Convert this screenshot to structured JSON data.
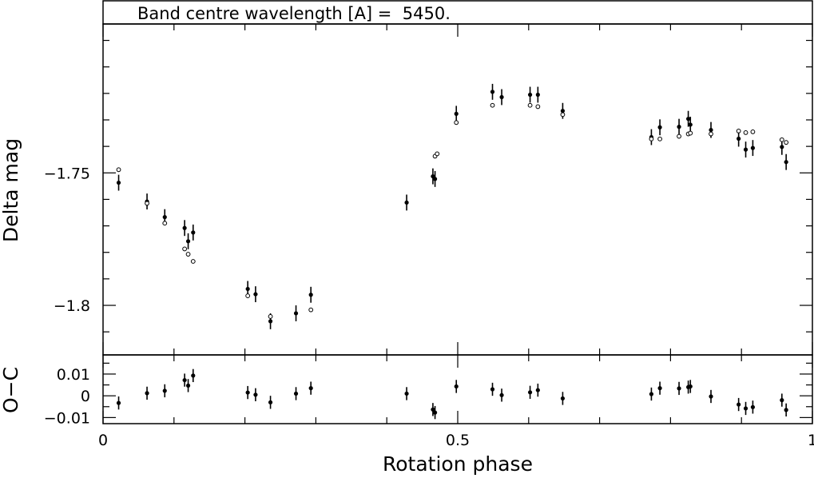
{
  "chart_data": {
    "type": "scatter",
    "title": "Band centre wavelength [A] =  5450.",
    "xlabel": "Rotation phase",
    "xlim": [
      0,
      1
    ],
    "x_ticks": [
      0,
      0.5,
      1
    ],
    "x_tick_labels": [
      "0",
      "0.5",
      "1"
    ],
    "main_panel": {
      "ylabel": "Delta mag",
      "ylim": [
        -1.6938,
        -1.8187
      ],
      "y_ticks": [
        -1.8,
        -1.75
      ],
      "y_tick_labels": [
        "−1.8",
        "−1.75"
      ],
      "series": [
        {
          "marker": "filled",
          "errorbars": true,
          "x": [
            0.022,
            0.062,
            0.087,
            0.115,
            0.12,
            0.127,
            0.204,
            0.215,
            0.236,
            0.272,
            0.293,
            0.428,
            0.465,
            0.468,
            0.498,
            0.549,
            0.562,
            0.602,
            0.613,
            0.648,
            0.773,
            0.785,
            0.812,
            0.825,
            0.828,
            0.857,
            0.896,
            0.906,
            0.916,
            0.957,
            0.963
          ],
          "y": [
            -1.7537,
            -1.7608,
            -1.7667,
            -1.7708,
            -1.7758,
            -1.7725,
            -1.7938,
            -1.7958,
            -1.806,
            -1.803,
            -1.796,
            -1.7612,
            -1.7513,
            -1.7523,
            -1.7277,
            -1.7194,
            -1.7214,
            -1.7205,
            -1.7205,
            -1.7266,
            -1.7365,
            -1.7328,
            -1.7326,
            -1.7296,
            -1.7318,
            -1.7338,
            -1.7371,
            -1.7412,
            -1.7406,
            -1.7402,
            -1.7459
          ],
          "yerr": [
            0.003,
            0.003,
            0.003,
            0.003,
            0.003,
            0.003,
            0.003,
            0.003,
            0.003,
            0.003,
            0.003,
            0.003,
            0.003,
            0.003,
            0.003,
            0.003,
            0.003,
            0.003,
            0.003,
            0.003,
            0.003,
            0.003,
            0.003,
            0.003,
            0.003,
            0.003,
            0.003,
            0.003,
            0.003,
            0.003,
            0.003
          ]
        },
        {
          "marker": "open",
          "errorbars": false,
          "x": [
            0.022,
            0.062,
            0.087,
            0.115,
            0.12,
            0.127,
            0.204,
            0.236,
            0.293,
            0.468,
            0.471,
            0.498,
            0.549,
            0.602,
            0.613,
            0.648,
            0.773,
            0.785,
            0.812,
            0.825,
            0.828,
            0.857,
            0.896,
            0.906,
            0.916,
            0.957,
            0.963
          ],
          "y": [
            -1.7488,
            -1.7615,
            -1.769,
            -1.7787,
            -1.7807,
            -1.7834,
            -1.7964,
            -1.8042,
            -1.8017,
            -1.7437,
            -1.7428,
            -1.731,
            -1.7245,
            -1.7245,
            -1.725,
            -1.728,
            -1.7372,
            -1.7372,
            -1.7362,
            -1.7353,
            -1.735,
            -1.7353,
            -1.7342,
            -1.7348,
            -1.7345,
            -1.7375,
            -1.7385
          ]
        }
      ]
    },
    "residual_panel": {
      "ylabel": "O−C",
      "ylim": [
        0.0188,
        -0.0128
      ],
      "y_ticks": [
        -0.01,
        0,
        0.01
      ],
      "y_tick_labels": [
        "−0.01",
        "0",
        "0.01"
      ],
      "x": [
        0.022,
        0.062,
        0.087,
        0.115,
        0.12,
        0.127,
        0.204,
        0.215,
        0.236,
        0.272,
        0.293,
        0.428,
        0.465,
        0.468,
        0.498,
        0.549,
        0.562,
        0.602,
        0.613,
        0.648,
        0.773,
        0.785,
        0.812,
        0.825,
        0.828,
        0.857,
        0.896,
        0.906,
        0.916,
        0.957,
        0.963
      ],
      "y": [
        -0.0033,
        0.0012,
        0.0023,
        0.0072,
        0.0047,
        0.0093,
        0.0015,
        0.0005,
        -0.003,
        0.001,
        0.0035,
        0.001,
        -0.0063,
        -0.0077,
        0.0043,
        0.003,
        0.0003,
        0.0016,
        0.0026,
        -0.0012,
        0.0008,
        0.0035,
        0.0034,
        0.004,
        0.0043,
        -0.0003,
        -0.004,
        -0.0058,
        -0.0052,
        -0.002,
        -0.0065
      ],
      "yerr": [
        0.003,
        0.003,
        0.003,
        0.003,
        0.003,
        0.003,
        0.003,
        0.003,
        0.003,
        0.003,
        0.003,
        0.003,
        0.003,
        0.003,
        0.003,
        0.003,
        0.003,
        0.003,
        0.003,
        0.003,
        0.003,
        0.003,
        0.003,
        0.003,
        0.003,
        0.003,
        0.003,
        0.003,
        0.003,
        0.003,
        0.003
      ]
    }
  }
}
